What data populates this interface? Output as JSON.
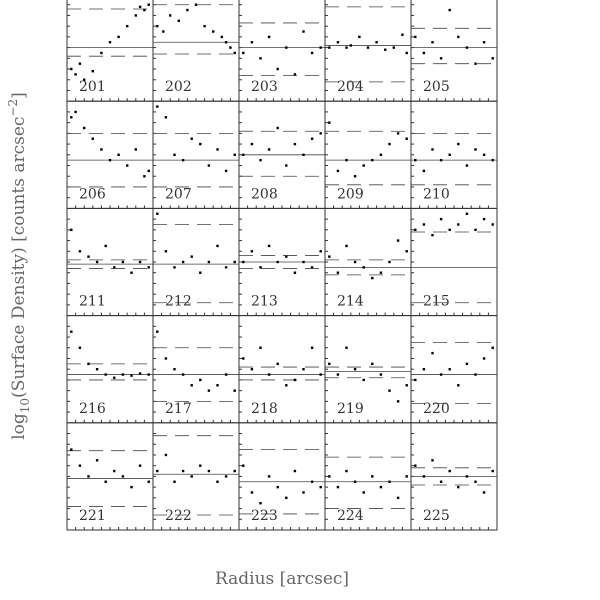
{
  "axis_labels": {
    "x": "Radius [arcsec]",
    "y": [
      "log",
      "10",
      "(Surface Density) [counts arcsec",
      "−2",
      "]"
    ]
  },
  "chart_data": [
    {
      "type": "scatter",
      "title": "201",
      "xlim": [
        0,
        1
      ],
      "ylim": [
        0,
        1
      ],
      "x": [
        0.05,
        0.1,
        0.15,
        0.2,
        0.3,
        0.4,
        0.5,
        0.6,
        0.7,
        0.8,
        0.85,
        0.9,
        0.95
      ],
      "y": [
        0.3,
        0.25,
        0.35,
        0.2,
        0.28,
        0.45,
        0.55,
        0.6,
        0.7,
        0.8,
        0.88,
        0.85,
        0.9
      ],
      "hlines": [
        {
          "value": 0.5,
          "style": "solid"
        },
        {
          "value": 0.86,
          "style": "dashed"
        },
        {
          "value": 0.42,
          "style": "dashed"
        }
      ]
    },
    {
      "type": "scatter",
      "title": "202",
      "xlim": [
        0,
        1
      ],
      "ylim": [
        0,
        1
      ],
      "x": [
        0.05,
        0.12,
        0.2,
        0.3,
        0.4,
        0.5,
        0.6,
        0.7,
        0.8,
        0.85,
        0.9,
        0.95
      ],
      "y": [
        0.7,
        0.65,
        0.8,
        0.75,
        0.85,
        0.9,
        0.7,
        0.65,
        0.6,
        0.55,
        0.5,
        0.45
      ],
      "hlines": [
        {
          "value": 0.55,
          "style": "solid"
        },
        {
          "value": 0.9,
          "style": "dashed"
        },
        {
          "value": 0.44,
          "style": "dashed"
        }
      ]
    },
    {
      "type": "scatter",
      "title": "203",
      "xlim": [
        0,
        1
      ],
      "ylim": [
        0,
        1
      ],
      "x": [
        0.05,
        0.15,
        0.25,
        0.35,
        0.45,
        0.55,
        0.65,
        0.75,
        0.85,
        0.95
      ],
      "y": [
        0.45,
        0.55,
        0.4,
        0.6,
        0.3,
        0.5,
        0.25,
        0.65,
        0.45,
        0.5
      ],
      "hlines": [
        {
          "value": 0.5,
          "style": "solid"
        },
        {
          "value": 0.73,
          "style": "dashed"
        },
        {
          "value": 0.24,
          "style": "dashed"
        }
      ]
    },
    {
      "type": "scatter",
      "title": "204",
      "xlim": [
        0,
        1
      ],
      "ylim": [
        0,
        1
      ],
      "x": [
        0.05,
        0.15,
        0.25,
        0.3,
        0.4,
        0.5,
        0.6,
        0.7,
        0.8,
        0.9,
        0.95
      ],
      "y": [
        0.5,
        0.55,
        0.5,
        0.52,
        0.6,
        0.5,
        0.55,
        0.48,
        0.5,
        0.62,
        0.45
      ],
      "hlines": [
        {
          "value": 0.52,
          "style": "solid"
        },
        {
          "value": 0.88,
          "style": "dashed"
        },
        {
          "value": 0.18,
          "style": "dashed"
        }
      ]
    },
    {
      "type": "scatter",
      "title": "205",
      "xlim": [
        0,
        1
      ],
      "ylim": [
        0,
        1
      ],
      "x": [
        0.05,
        0.15,
        0.25,
        0.35,
        0.45,
        0.55,
        0.65,
        0.75,
        0.85,
        0.95
      ],
      "y": [
        0.6,
        0.45,
        0.55,
        0.4,
        0.85,
        0.6,
        0.5,
        0.35,
        0.55,
        0.4
      ],
      "hlines": [
        {
          "value": 0.5,
          "style": "solid"
        },
        {
          "value": 0.68,
          "style": "dashed"
        },
        {
          "value": 0.35,
          "style": "dashed"
        }
      ]
    },
    {
      "type": "scatter",
      "title": "206",
      "xlim": [
        0,
        1
      ],
      "ylim": [
        0,
        1
      ],
      "x": [
        0.05,
        0.1,
        0.2,
        0.3,
        0.4,
        0.5,
        0.6,
        0.7,
        0.8,
        0.9,
        0.95
      ],
      "y": [
        0.85,
        0.9,
        0.75,
        0.65,
        0.55,
        0.45,
        0.5,
        0.4,
        0.55,
        0.3,
        0.35
      ],
      "hlines": [
        {
          "value": 0.45,
          "style": "solid"
        },
        {
          "value": 0.7,
          "style": "dashed"
        },
        {
          "value": 0.2,
          "style": "dashed"
        }
      ]
    },
    {
      "type": "scatter",
      "title": "207",
      "xlim": [
        0,
        1
      ],
      "ylim": [
        0,
        1
      ],
      "x": [
        0.05,
        0.15,
        0.25,
        0.35,
        0.45,
        0.55,
        0.65,
        0.75,
        0.85,
        0.95
      ],
      "y": [
        0.95,
        0.85,
        0.5,
        0.45,
        0.65,
        0.6,
        0.4,
        0.55,
        0.35,
        0.5
      ],
      "hlines": [
        {
          "value": 0.45,
          "style": "solid"
        },
        {
          "value": 0.7,
          "style": "dashed"
        },
        {
          "value": 0.2,
          "style": "dashed"
        }
      ]
    },
    {
      "type": "scatter",
      "title": "208",
      "xlim": [
        0,
        1
      ],
      "ylim": [
        0,
        1
      ],
      "x": [
        0.05,
        0.15,
        0.25,
        0.35,
        0.45,
        0.55,
        0.65,
        0.75,
        0.85,
        0.95
      ],
      "y": [
        0.5,
        0.6,
        0.45,
        0.55,
        0.75,
        0.4,
        0.6,
        0.5,
        0.65,
        0.7
      ],
      "hlines": [
        {
          "value": 0.5,
          "style": "solid"
        },
        {
          "value": 0.72,
          "style": "dashed"
        },
        {
          "value": 0.3,
          "style": "dashed"
        }
      ]
    },
    {
      "type": "scatter",
      "title": "209",
      "xlim": [
        0,
        1
      ],
      "ylim": [
        0,
        1
      ],
      "x": [
        0.05,
        0.15,
        0.25,
        0.35,
        0.45,
        0.55,
        0.65,
        0.75,
        0.85,
        0.95
      ],
      "y": [
        0.8,
        0.35,
        0.45,
        0.3,
        0.4,
        0.45,
        0.5,
        0.6,
        0.7,
        0.65
      ],
      "hlines": [
        {
          "value": 0.45,
          "style": "solid"
        },
        {
          "value": 0.72,
          "style": "dashed"
        },
        {
          "value": 0.22,
          "style": "dashed"
        }
      ]
    },
    {
      "type": "scatter",
      "title": "210",
      "xlim": [
        0,
        1
      ],
      "ylim": [
        0,
        1
      ],
      "x": [
        0.05,
        0.15,
        0.25,
        0.35,
        0.45,
        0.55,
        0.65,
        0.75,
        0.85,
        0.95
      ],
      "y": [
        0.45,
        0.35,
        0.55,
        0.45,
        0.5,
        0.6,
        0.4,
        0.55,
        0.5,
        0.45
      ],
      "hlines": [
        {
          "value": 0.45,
          "style": "solid"
        },
        {
          "value": 0.7,
          "style": "dashed"
        },
        {
          "value": 0.22,
          "style": "dashed"
        }
      ]
    },
    {
      "type": "scatter",
      "title": "211",
      "xlim": [
        0,
        1
      ],
      "ylim": [
        0,
        1
      ],
      "x": [
        0.05,
        0.15,
        0.25,
        0.35,
        0.45,
        0.55,
        0.65,
        0.75,
        0.85,
        0.95
      ],
      "y": [
        0.8,
        0.6,
        0.55,
        0.5,
        0.65,
        0.45,
        0.5,
        0.4,
        0.5,
        0.45
      ],
      "hlines": [
        {
          "value": 0.48,
          "style": "solid"
        },
        {
          "value": 0.52,
          "style": "dashed"
        },
        {
          "value": 0.44,
          "style": "dashed"
        }
      ]
    },
    {
      "type": "scatter",
      "title": "212",
      "xlim": [
        0,
        1
      ],
      "ylim": [
        0,
        1
      ],
      "x": [
        0.05,
        0.15,
        0.25,
        0.35,
        0.45,
        0.55,
        0.65,
        0.75,
        0.85,
        0.95
      ],
      "y": [
        0.95,
        0.6,
        0.45,
        0.5,
        0.55,
        0.4,
        0.5,
        0.65,
        0.45,
        0.5
      ],
      "hlines": [
        {
          "value": 0.48,
          "style": "solid"
        },
        {
          "value": 0.85,
          "style": "dashed"
        },
        {
          "value": 0.12,
          "style": "dashed"
        }
      ]
    },
    {
      "type": "scatter",
      "title": "213",
      "xlim": [
        0,
        1
      ],
      "ylim": [
        0,
        1
      ],
      "x": [
        0.05,
        0.15,
        0.25,
        0.35,
        0.45,
        0.55,
        0.65,
        0.75,
        0.85,
        0.95
      ],
      "y": [
        0.5,
        0.6,
        0.45,
        0.65,
        0.5,
        0.55,
        0.4,
        0.5,
        0.45,
        0.6
      ],
      "hlines": [
        {
          "value": 0.5,
          "style": "solid"
        },
        {
          "value": 0.56,
          "style": "dashed"
        },
        {
          "value": 0.44,
          "style": "dashed"
        }
      ]
    },
    {
      "type": "scatter",
      "title": "214",
      "xlim": [
        0,
        1
      ],
      "ylim": [
        0,
        1
      ],
      "x": [
        0.05,
        0.15,
        0.25,
        0.35,
        0.45,
        0.55,
        0.65,
        0.75,
        0.85,
        0.95
      ],
      "y": [
        0.55,
        0.4,
        0.65,
        0.5,
        0.45,
        0.35,
        0.4,
        0.5,
        0.7,
        0.6
      ],
      "hlines": [
        {
          "value": 0.45,
          "style": "solid"
        },
        {
          "value": 0.52,
          "style": "dashed"
        },
        {
          "value": 0.38,
          "style": "dashed"
        }
      ]
    },
    {
      "type": "scatter",
      "title": "215",
      "xlim": [
        0,
        1
      ],
      "ylim": [
        0,
        1
      ],
      "x": [
        0.05,
        0.15,
        0.25,
        0.35,
        0.45,
        0.55,
        0.65,
        0.75,
        0.85,
        0.95
      ],
      "y": [
        0.8,
        0.85,
        0.75,
        0.9,
        0.8,
        0.85,
        0.95,
        0.8,
        0.9,
        0.85
      ],
      "hlines": [
        {
          "value": 0.45,
          "style": "solid"
        },
        {
          "value": 0.78,
          "style": "dashed"
        },
        {
          "value": 0.12,
          "style": "dashed"
        }
      ]
    },
    {
      "type": "scatter",
      "title": "216",
      "xlim": [
        0,
        1
      ],
      "ylim": [
        0,
        1
      ],
      "x": [
        0.05,
        0.15,
        0.25,
        0.35,
        0.45,
        0.55,
        0.65,
        0.75,
        0.85,
        0.95
      ],
      "y": [
        0.85,
        0.7,
        0.55,
        0.5,
        0.45,
        0.42,
        0.45,
        0.44,
        0.46,
        0.45
      ],
      "hlines": [
        {
          "value": 0.45,
          "style": "solid"
        },
        {
          "value": 0.55,
          "style": "dashed"
        },
        {
          "value": 0.4,
          "style": "dashed"
        }
      ]
    },
    {
      "type": "scatter",
      "title": "217",
      "xlim": [
        0,
        1
      ],
      "ylim": [
        0,
        1
      ],
      "x": [
        0.05,
        0.15,
        0.25,
        0.35,
        0.45,
        0.55,
        0.65,
        0.75,
        0.85,
        0.95
      ],
      "y": [
        0.85,
        0.6,
        0.5,
        0.45,
        0.35,
        0.4,
        0.3,
        0.35,
        0.45,
        0.3
      ],
      "hlines": [
        {
          "value": 0.45,
          "style": "solid"
        },
        {
          "value": 0.7,
          "style": "dashed"
        },
        {
          "value": 0.2,
          "style": "dashed"
        }
      ]
    },
    {
      "type": "scatter",
      "title": "218",
      "xlim": [
        0,
        1
      ],
      "ylim": [
        0,
        1
      ],
      "x": [
        0.05,
        0.15,
        0.25,
        0.35,
        0.45,
        0.55,
        0.65,
        0.75,
        0.85,
        0.95
      ],
      "y": [
        0.6,
        0.5,
        0.7,
        0.45,
        0.55,
        0.35,
        0.4,
        0.5,
        0.7,
        0.45
      ],
      "hlines": [
        {
          "value": 0.45,
          "style": "solid"
        },
        {
          "value": 0.52,
          "style": "dashed"
        },
        {
          "value": 0.4,
          "style": "dashed"
        }
      ]
    },
    {
      "type": "scatter",
      "title": "219",
      "xlim": [
        0,
        1
      ],
      "ylim": [
        0,
        1
      ],
      "x": [
        0.05,
        0.15,
        0.25,
        0.35,
        0.45,
        0.55,
        0.65,
        0.75,
        0.85,
        0.95
      ],
      "y": [
        0.55,
        0.45,
        0.7,
        0.5,
        0.4,
        0.55,
        0.45,
        0.3,
        0.2,
        0.35
      ],
      "hlines": [
        {
          "value": 0.48,
          "style": "solid"
        },
        {
          "value": 0.52,
          "style": "dashed"
        },
        {
          "value": 0.42,
          "style": "dashed"
        }
      ]
    },
    {
      "type": "scatter",
      "title": "220",
      "xlim": [
        0,
        1
      ],
      "ylim": [
        0,
        1
      ],
      "x": [
        0.05,
        0.15,
        0.25,
        0.35,
        0.45,
        0.55,
        0.65,
        0.75,
        0.85,
        0.95
      ],
      "y": [
        0.4,
        0.5,
        0.65,
        0.45,
        0.5,
        0.35,
        0.55,
        0.45,
        0.6,
        0.7
      ],
      "hlines": [
        {
          "value": 0.45,
          "style": "solid"
        },
        {
          "value": 0.75,
          "style": "dashed"
        },
        {
          "value": 0.18,
          "style": "dashed"
        }
      ]
    },
    {
      "type": "scatter",
      "title": "221",
      "xlim": [
        0,
        1
      ],
      "ylim": [
        0,
        1
      ],
      "x": [
        0.05,
        0.15,
        0.25,
        0.35,
        0.45,
        0.55,
        0.65,
        0.75,
        0.85,
        0.95
      ],
      "y": [
        0.75,
        0.6,
        0.5,
        0.65,
        0.45,
        0.55,
        0.5,
        0.4,
        0.6,
        0.45
      ],
      "hlines": [
        {
          "value": 0.48,
          "style": "solid"
        },
        {
          "value": 0.74,
          "style": "dashed"
        },
        {
          "value": 0.22,
          "style": "dashed"
        }
      ]
    },
    {
      "type": "scatter",
      "title": "222",
      "xlim": [
        0,
        1
      ],
      "ylim": [
        0,
        1
      ],
      "x": [
        0.05,
        0.15,
        0.25,
        0.35,
        0.45,
        0.55,
        0.65,
        0.75,
        0.85,
        0.95
      ],
      "y": [
        0.55,
        0.7,
        0.45,
        0.55,
        0.5,
        0.6,
        0.55,
        0.45,
        0.5,
        0.55
      ],
      "hlines": [
        {
          "value": 0.52,
          "style": "solid"
        },
        {
          "value": 0.88,
          "style": "dashed"
        },
        {
          "value": 0.14,
          "style": "dashed"
        }
      ]
    },
    {
      "type": "scatter",
      "title": "223",
      "xlim": [
        0,
        1
      ],
      "ylim": [
        0,
        1
      ],
      "x": [
        0.05,
        0.15,
        0.25,
        0.35,
        0.45,
        0.55,
        0.65,
        0.75,
        0.85,
        0.95
      ],
      "y": [
        0.6,
        0.35,
        0.25,
        0.5,
        0.4,
        0.3,
        0.55,
        0.35,
        0.45,
        0.4
      ],
      "hlines": [
        {
          "value": 0.45,
          "style": "solid"
        },
        {
          "value": 0.75,
          "style": "dashed"
        },
        {
          "value": 0.15,
          "style": "dashed"
        }
      ]
    },
    {
      "type": "scatter",
      "title": "224",
      "xlim": [
        0,
        1
      ],
      "ylim": [
        0,
        1
      ],
      "x": [
        0.05,
        0.15,
        0.25,
        0.35,
        0.45,
        0.55,
        0.65,
        0.75,
        0.85,
        0.95
      ],
      "y": [
        0.5,
        0.4,
        0.55,
        0.45,
        0.35,
        0.5,
        0.4,
        0.45,
        0.3,
        0.5
      ],
      "hlines": [
        {
          "value": 0.45,
          "style": "solid"
        },
        {
          "value": 0.68,
          "style": "dashed"
        },
        {
          "value": 0.2,
          "style": "dashed"
        }
      ]
    },
    {
      "type": "scatter",
      "title": "225",
      "xlim": [
        0,
        1
      ],
      "ylim": [
        0,
        1
      ],
      "x": [
        0.05,
        0.15,
        0.25,
        0.35,
        0.45,
        0.55,
        0.65,
        0.75,
        0.85,
        0.95
      ],
      "y": [
        0.6,
        0.5,
        0.65,
        0.45,
        0.55,
        0.4,
        0.5,
        0.45,
        0.35,
        0.55
      ],
      "hlines": [
        {
          "value": 0.5,
          "style": "solid"
        },
        {
          "value": 0.58,
          "style": "dashed"
        },
        {
          "value": 0.42,
          "style": "dashed"
        }
      ]
    }
  ]
}
